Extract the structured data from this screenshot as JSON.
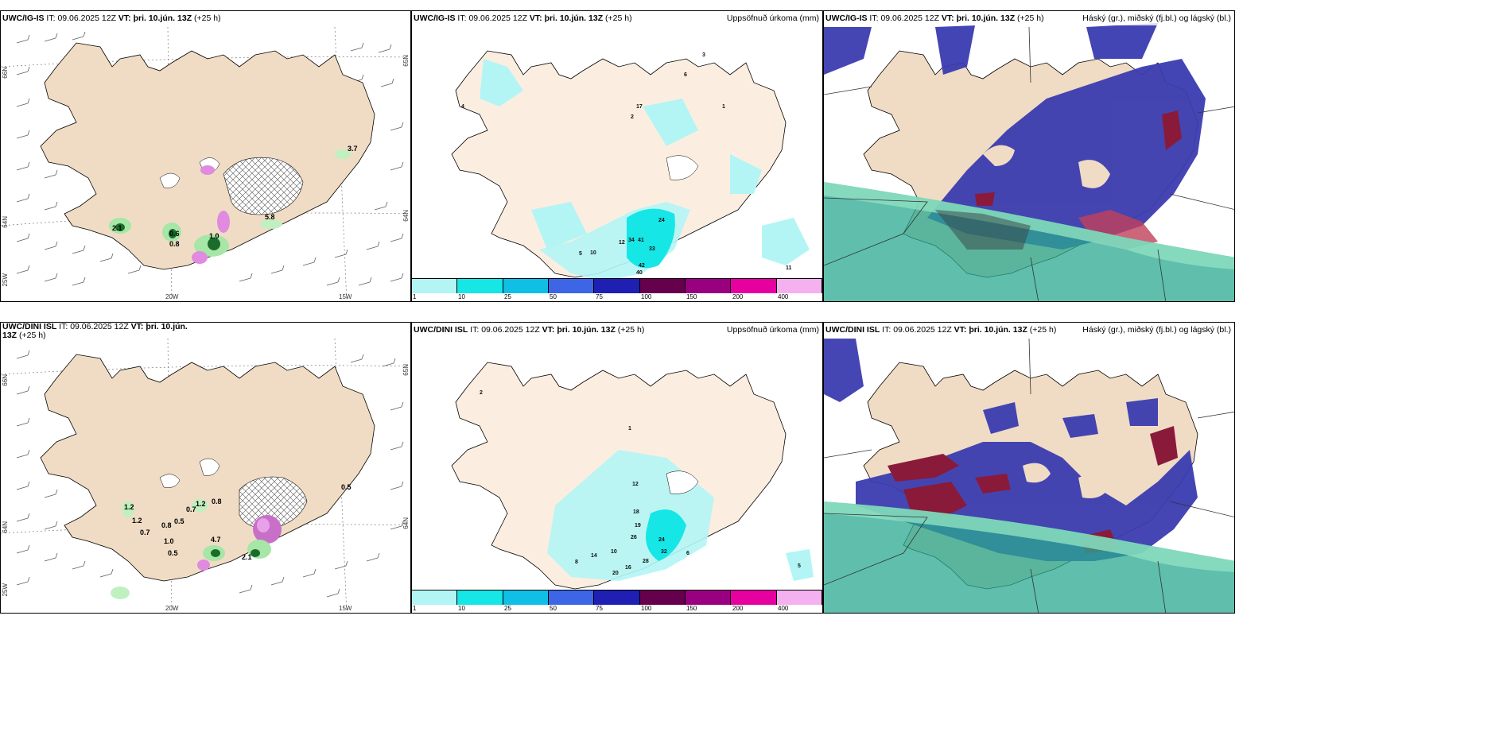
{
  "panels": {
    "top_left": {
      "model": "UWC/IG-IS",
      "init_label": "IT:",
      "init_time": "09.06.2025 12Z",
      "valid_label": "VT:",
      "valid_time": "þri. 10.jún. 13Z",
      "lead": "(+25 h)",
      "lat_labels": [
        "66N",
        "64N",
        "65N"
      ],
      "lon_labels": [
        "20W",
        "15W",
        "25W"
      ],
      "values": [
        "2.1",
        "0.8",
        "0.6",
        "1.0",
        "5.8",
        "3.7"
      ]
    },
    "top_mid": {
      "model": "UWC/IG-IS",
      "init_label": "IT:",
      "init_time": "09.06.2025 12Z",
      "valid_label": "VT:",
      "valid_time": "þri. 10.jún. 13Z",
      "lead": "(+25 h)",
      "right_title": "Uppsöfnuð úrkoma (mm)",
      "values": [
        "17",
        "6",
        "4",
        "2",
        "34",
        "41",
        "33",
        "42",
        "40",
        "24",
        "12",
        "10",
        "11",
        "3",
        "1",
        "5"
      ]
    },
    "top_right": {
      "model": "UWC/IG-IS",
      "init_label": "IT:",
      "init_time": "09.06.2025 12Z",
      "valid_label": "VT:",
      "valid_time": "þri. 10.jún. 13Z",
      "lead": "(+25 h)",
      "right_title": "Háský (gr.), miðský (fj.bl.) og lágský (bl.)"
    },
    "bottom_left": {
      "model": "UWC/DINI ISL",
      "init_label": "IT:",
      "init_time": "09.06.2025 12Z",
      "valid_label": "VT:",
      "valid_time": "þri. 10.jún. 13Z",
      "lead": "(+25 h)",
      "lat_labels": [
        "66N",
        "64N",
        "65N"
      ],
      "lon_labels": [
        "20W",
        "15W",
        "25W"
      ],
      "values": [
        "1.2",
        "1.2",
        "0.7",
        "0.8",
        "1.0",
        "0.5",
        "0.7",
        "1.2",
        "0.8",
        "0.5",
        "4.7",
        "2.1",
        "0.5"
      ]
    },
    "bottom_mid": {
      "model": "UWC/DINI ISL",
      "init_label": "IT:",
      "init_time": "09.06.2025 12Z",
      "valid_label": "VT:",
      "valid_time": "þri. 10.jún. 13Z",
      "lead": "(+25 h)",
      "right_title": "Uppsöfnuð úrkoma (mm)",
      "values": [
        "2",
        "1",
        "12",
        "18",
        "19",
        "26",
        "28",
        "32",
        "24",
        "16",
        "20",
        "14",
        "10",
        "8",
        "6",
        "5"
      ]
    },
    "bottom_right": {
      "model": "UWC/DINI ISL",
      "init_label": "IT:",
      "init_time": "09.06.2025 12Z",
      "valid_label": "VT:",
      "valid_time": "þri. 10.jún. 13Z",
      "lead": "(+25 h)",
      "right_title": "Háský (gr.), miðský (fj.bl.) og lágský (bl.)"
    }
  },
  "colorbar": {
    "labels": [
      "1",
      "10",
      "25",
      "50",
      "75",
      "100",
      "150",
      "200",
      "400"
    ],
    "colors": [
      "#b3f5f5",
      "#16e6e6",
      "#0fbfe5",
      "#3d66e6",
      "#1f1fb3",
      "#66004d",
      "#990080",
      "#e600a0",
      "#f5b0f0"
    ]
  },
  "colors": {
    "land": "#f0dcc4",
    "land_mid": "#fbeee0",
    "ocean": "#ffffff",
    "cloud_high": "#7e9a9a",
    "cloud_mid": "#3b3cb0",
    "cloud_low": "#8a1a3a",
    "precip_light": "#b3f5f5",
    "precip_mid": "#16e6e6"
  }
}
